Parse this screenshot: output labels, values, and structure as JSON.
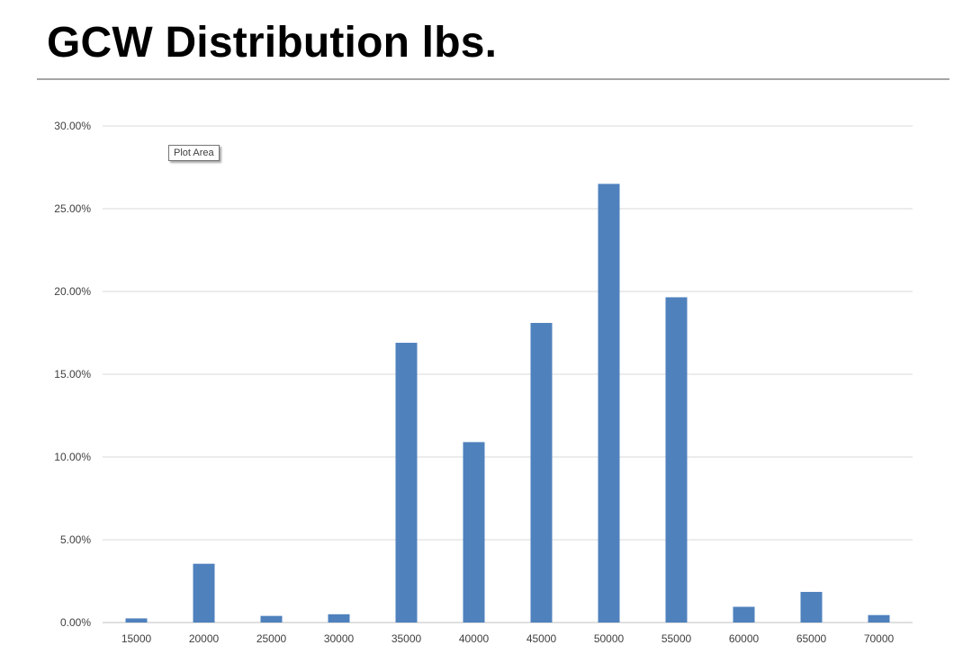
{
  "slide": {
    "title": "GCW Distribution lbs."
  },
  "tooltip": {
    "text": "Plot Area"
  },
  "colors": {
    "bar": "#4f81bd",
    "grid": "#d9d9d9",
    "axis": "#bfbfbf",
    "rule": "#a6a6a6"
  },
  "chart_data": {
    "type": "bar",
    "title": "",
    "xlabel": "",
    "ylabel": "",
    "categories": [
      "15000",
      "20000",
      "25000",
      "30000",
      "35000",
      "40000",
      "45000",
      "50000",
      "55000",
      "60000",
      "65000",
      "70000"
    ],
    "values": [
      0.0025,
      0.0355,
      0.004,
      0.005,
      0.169,
      0.109,
      0.181,
      0.265,
      0.1965,
      0.0095,
      0.0185,
      0.0045
    ],
    "ylim": [
      0,
      0.3
    ],
    "yticks": [
      {
        "value": 0.0,
        "label": "0.00%"
      },
      {
        "value": 0.05,
        "label": "5.00%"
      },
      {
        "value": 0.1,
        "label": "10.00%"
      },
      {
        "value": 0.15,
        "label": "15.00%"
      },
      {
        "value": 0.2,
        "label": "20.00%"
      },
      {
        "value": 0.25,
        "label": "25.00%"
      },
      {
        "value": 0.3,
        "label": "30.00%"
      }
    ],
    "grid": true,
    "legend": "none"
  }
}
